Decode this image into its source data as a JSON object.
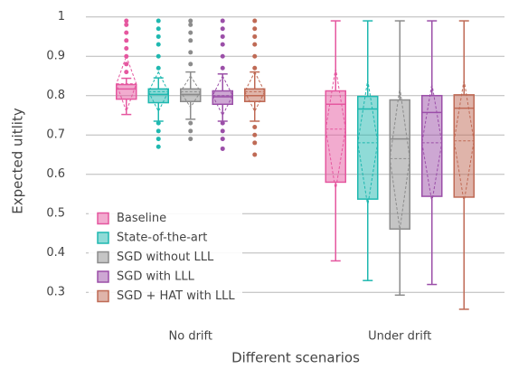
{
  "chart_data": {
    "type": "box",
    "x_label": "Different scenarios",
    "y_label": "Expected uitlity",
    "categories": [
      "No drift",
      "Under drift"
    ],
    "ylim": [
      0.25,
      1.02
    ],
    "yticks": [
      0.3,
      0.4,
      0.5,
      0.6,
      0.7,
      0.8,
      0.9,
      1
    ],
    "grid": true,
    "legend_position": "lower left",
    "series": [
      {
        "name": "Baseline",
        "color": "#e5579f",
        "boxes": [
          {
            "min": 0.752,
            "q1": 0.791,
            "median": 0.817,
            "q3": 0.828,
            "max": 0.844,
            "mean": 0.83,
            "sd": 0.07,
            "outliers": [
              0.86,
              0.88,
              0.9,
              0.92,
              0.94,
              0.96,
              0.98,
              0.99
            ]
          },
          {
            "min": 0.38,
            "q1": 0.58,
            "median": 0.778,
            "q3": 0.812,
            "max": 0.99,
            "mean": 0.715,
            "sd": 0.155,
            "outliers": []
          }
        ]
      },
      {
        "name": "State-of-the-art",
        "color": "#1fb8b0",
        "boxes": [
          {
            "min": 0.735,
            "q1": 0.782,
            "median": 0.803,
            "q3": 0.817,
            "max": 0.845,
            "mean": 0.81,
            "sd": 0.05,
            "outliers": [
              0.67,
              0.69,
              0.71,
              0.73,
              0.87,
              0.9,
              0.93,
              0.95,
              0.97,
              0.99
            ]
          },
          {
            "min": 0.33,
            "q1": 0.537,
            "median": 0.766,
            "q3": 0.798,
            "max": 0.99,
            "mean": 0.68,
            "sd": 0.16,
            "outliers": []
          }
        ]
      },
      {
        "name": "SGD without LLL",
        "color": "#8c8c8c",
        "boxes": [
          {
            "min": 0.74,
            "q1": 0.785,
            "median": 0.803,
            "q3": 0.817,
            "max": 0.86,
            "mean": 0.81,
            "sd": 0.04,
            "outliers": [
              0.69,
              0.71,
              0.73,
              0.88,
              0.91,
              0.94,
              0.96,
              0.98,
              0.99
            ]
          },
          {
            "min": 0.293,
            "q1": 0.461,
            "median": 0.69,
            "q3": 0.789,
            "max": 0.99,
            "mean": 0.64,
            "sd": 0.18,
            "outliers": []
          }
        ]
      },
      {
        "name": "SGD with LLL",
        "color": "#9b4fa8",
        "boxes": [
          {
            "min": 0.735,
            "q1": 0.778,
            "median": 0.797,
            "q3": 0.812,
            "max": 0.855,
            "mean": 0.8,
            "sd": 0.05,
            "outliers": [
              0.665,
              0.69,
              0.71,
              0.73,
              0.87,
              0.9,
              0.93,
              0.95,
              0.97,
              0.99
            ]
          },
          {
            "min": 0.32,
            "q1": 0.544,
            "median": 0.757,
            "q3": 0.8,
            "max": 0.99,
            "mean": 0.68,
            "sd": 0.15,
            "outliers": []
          }
        ]
      },
      {
        "name": "SGD + HAT with LLL",
        "color": "#bf6a55",
        "boxes": [
          {
            "min": 0.735,
            "q1": 0.785,
            "median": 0.8,
            "q3": 0.817,
            "max": 0.86,
            "mean": 0.81,
            "sd": 0.05,
            "outliers": [
              0.65,
              0.68,
              0.7,
              0.72,
              0.87,
              0.9,
              0.93,
              0.95,
              0.97,
              0.99
            ]
          },
          {
            "min": 0.257,
            "q1": 0.542,
            "median": 0.768,
            "q3": 0.802,
            "max": 0.99,
            "mean": 0.685,
            "sd": 0.155,
            "outliers": []
          }
        ]
      }
    ]
  }
}
